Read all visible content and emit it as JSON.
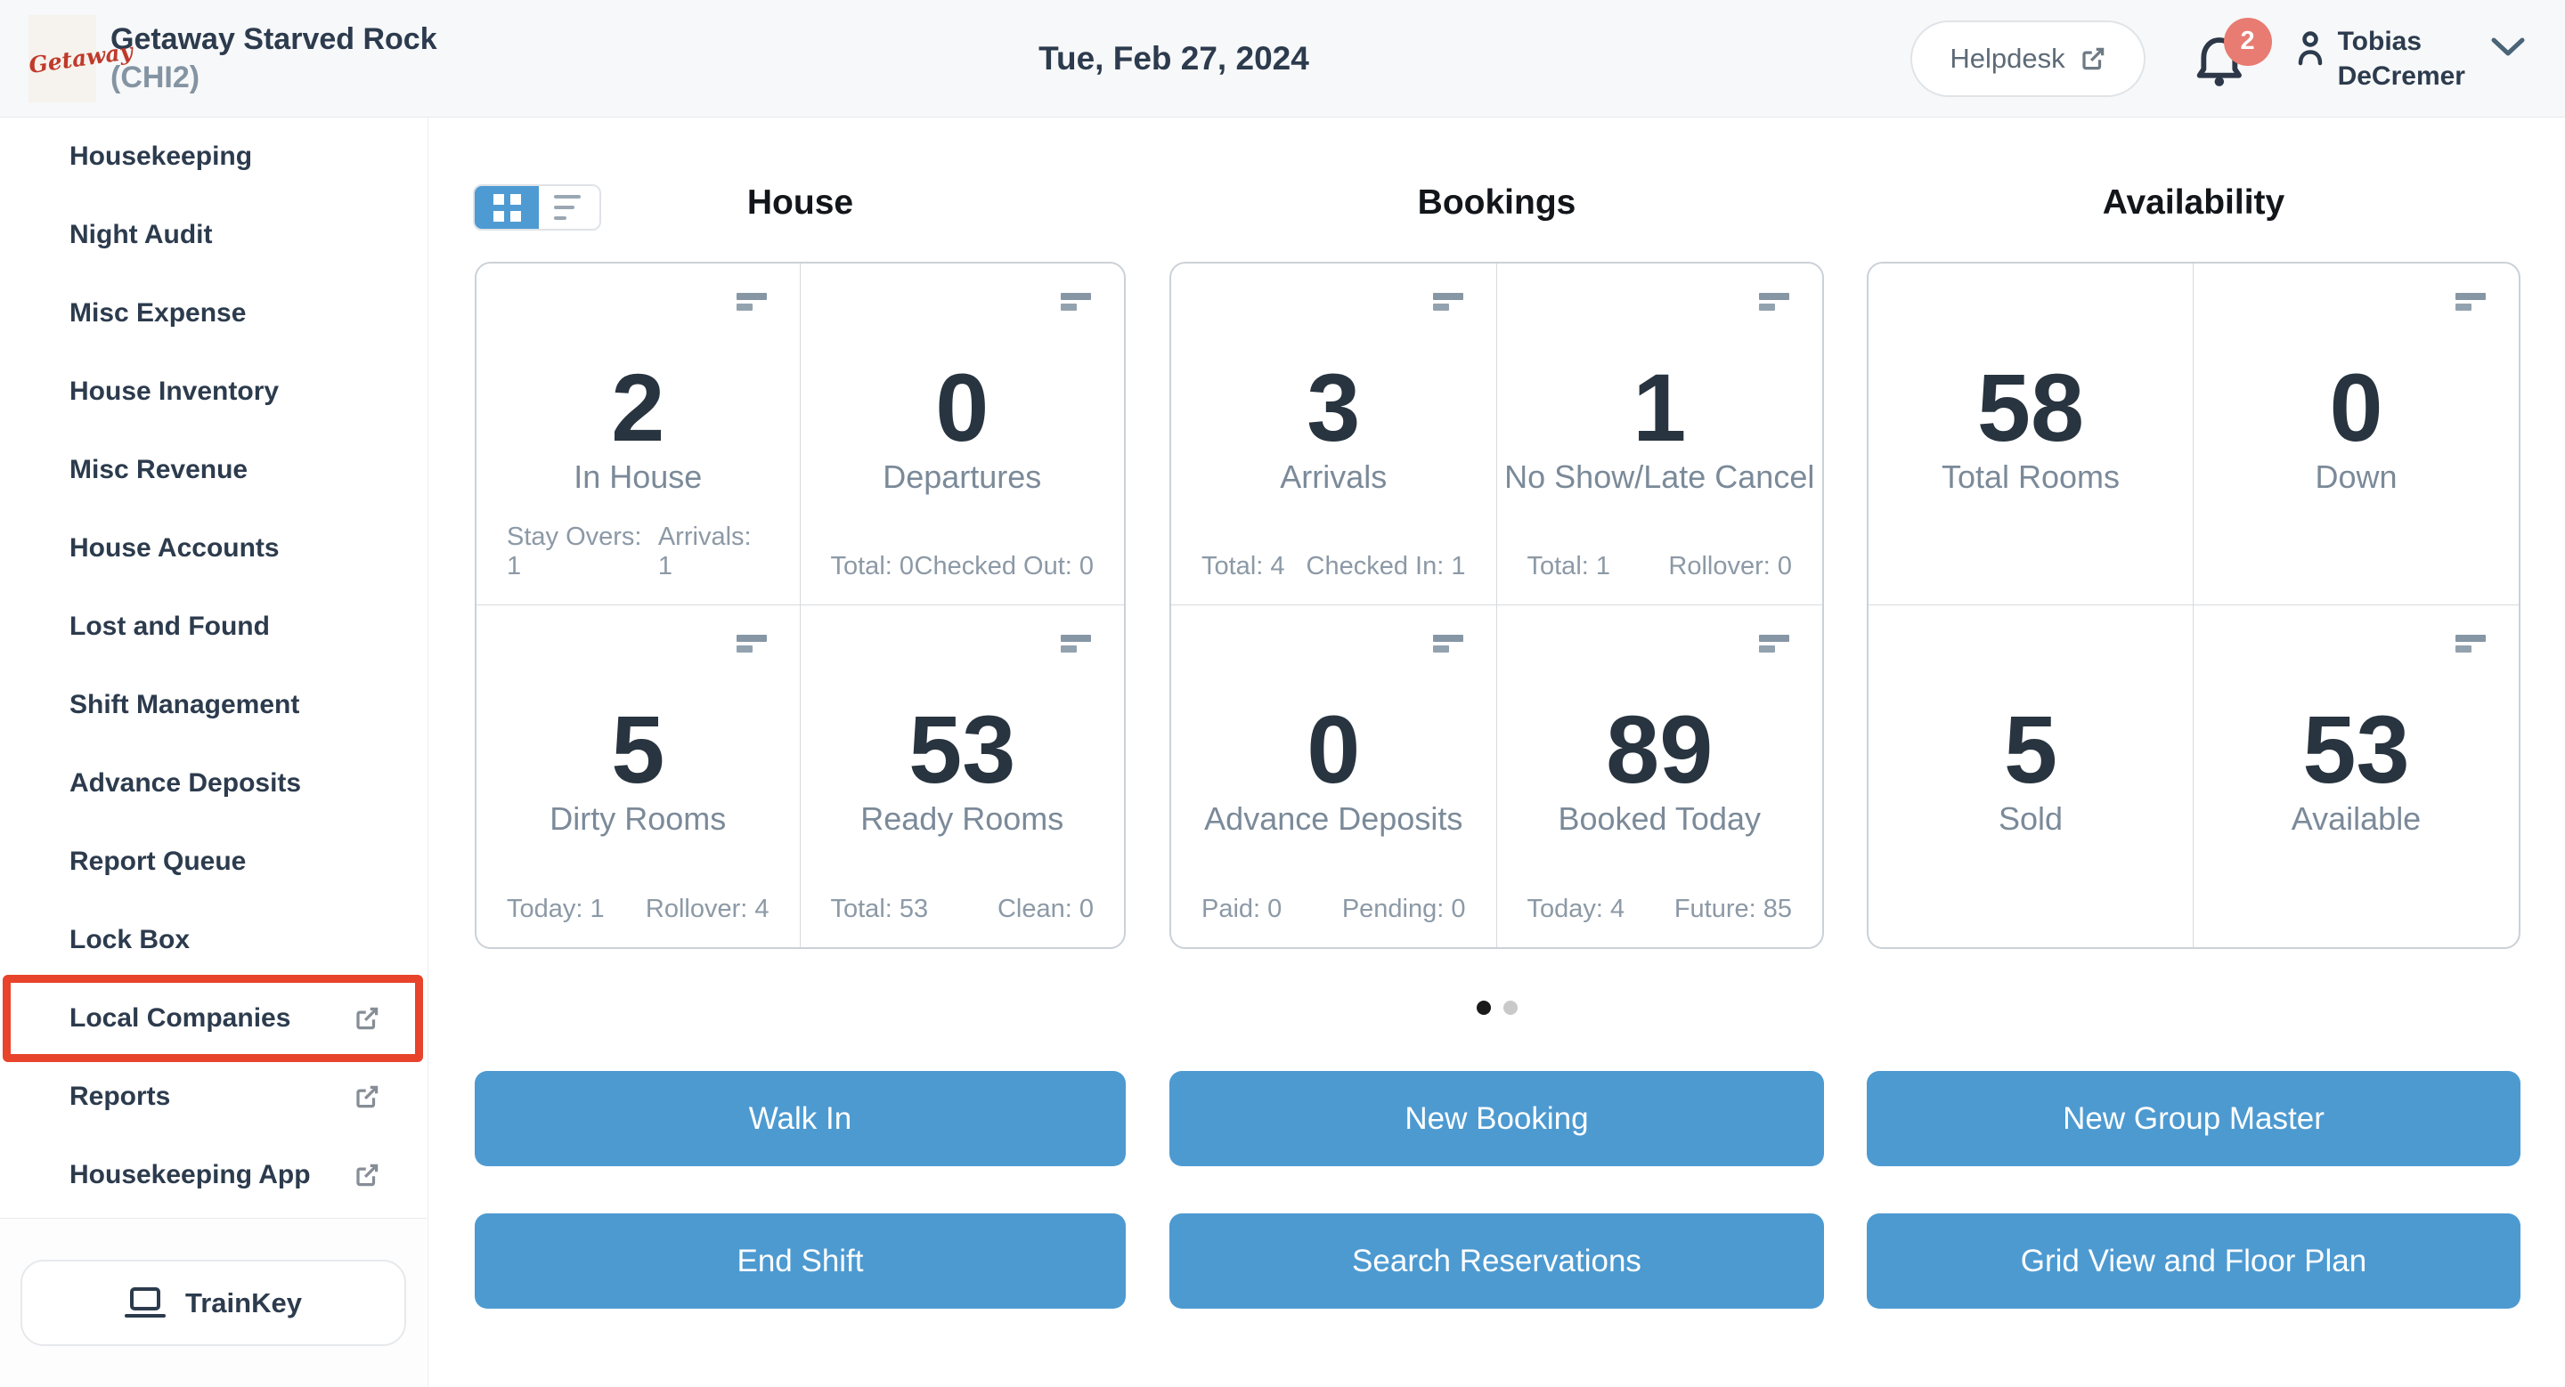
{
  "header": {
    "logo_text": "Getaway",
    "property_name": "Getaway Starved Rock",
    "property_code": "(CHI2)",
    "date": "Tue, Feb 27, 2024",
    "helpdesk_label": "Helpdesk",
    "notification_count": "2",
    "user_name_line1": "Tobias",
    "user_name_line2": "DeCremer"
  },
  "sidebar": {
    "items": [
      {
        "label": "Housekeeping",
        "external": false,
        "highlighted": false
      },
      {
        "label": "Night Audit",
        "external": false,
        "highlighted": false
      },
      {
        "label": "Misc Expense",
        "external": false,
        "highlighted": false
      },
      {
        "label": "House Inventory",
        "external": false,
        "highlighted": false
      },
      {
        "label": "Misc Revenue",
        "external": false,
        "highlighted": false
      },
      {
        "label": "House Accounts",
        "external": false,
        "highlighted": false
      },
      {
        "label": "Lost and Found",
        "external": false,
        "highlighted": false
      },
      {
        "label": "Shift Management",
        "external": false,
        "highlighted": false
      },
      {
        "label": "Advance Deposits",
        "external": false,
        "highlighted": false
      },
      {
        "label": "Report Queue",
        "external": false,
        "highlighted": false
      },
      {
        "label": "Lock Box",
        "external": false,
        "highlighted": false
      },
      {
        "label": "Local Companies",
        "external": true,
        "highlighted": true
      },
      {
        "label": "Reports",
        "external": true,
        "highlighted": false
      },
      {
        "label": "Housekeeping App",
        "external": true,
        "highlighted": false
      }
    ],
    "trainkey_label": "TrainKey"
  },
  "sections": [
    {
      "title": "House",
      "cards": [
        {
          "value": "2",
          "label": "In House",
          "menu_icon": true,
          "stats": [
            "Stay Overs: 1",
            "Arrivals: 1"
          ]
        },
        {
          "value": "0",
          "label": "Departures",
          "menu_icon": true,
          "stats": [
            "Total: 0",
            "Checked Out: 0"
          ]
        },
        {
          "value": "5",
          "label": "Dirty Rooms",
          "menu_icon": true,
          "stats": [
            "Today: 1",
            "Rollover: 4"
          ]
        },
        {
          "value": "53",
          "label": "Ready Rooms",
          "menu_icon": true,
          "stats": [
            "Total: 53",
            "Clean: 0"
          ]
        }
      ]
    },
    {
      "title": "Bookings",
      "cards": [
        {
          "value": "3",
          "label": "Arrivals",
          "menu_icon": true,
          "stats": [
            "Total: 4",
            "Checked In: 1"
          ]
        },
        {
          "value": "1",
          "label": "No Show/Late Cancel",
          "menu_icon": true,
          "stats": [
            "Total: 1",
            "Rollover: 0"
          ]
        },
        {
          "value": "0",
          "label": "Advance Deposits",
          "menu_icon": true,
          "stats": [
            "Paid: 0",
            "Pending: 0"
          ]
        },
        {
          "value": "89",
          "label": "Booked Today",
          "menu_icon": true,
          "stats": [
            "Today: 4",
            "Future: 85"
          ]
        }
      ]
    },
    {
      "title": "Availability",
      "cards": [
        {
          "value": "58",
          "label": "Total Rooms",
          "menu_icon": false,
          "stats": []
        },
        {
          "value": "0",
          "label": "Down",
          "menu_icon": true,
          "stats": []
        },
        {
          "value": "5",
          "label": "Sold",
          "menu_icon": false,
          "stats": []
        },
        {
          "value": "53",
          "label": "Available",
          "menu_icon": true,
          "stats": []
        }
      ]
    }
  ],
  "pagination": {
    "dots": 2,
    "active_index": 0
  },
  "actions": {
    "rows": [
      [
        "Walk In",
        "New Booking",
        "New Group Master"
      ],
      [
        "End Shift",
        "Search Reservations",
        "Grid View and Floor Plan"
      ]
    ]
  },
  "colors": {
    "accent_blue": "#4d9ad1",
    "toggle_blue": "#4e9bd3",
    "annotation_red": "#e8432b",
    "badge_red": "#e87b72",
    "logo_red": "#bf3a2b"
  }
}
